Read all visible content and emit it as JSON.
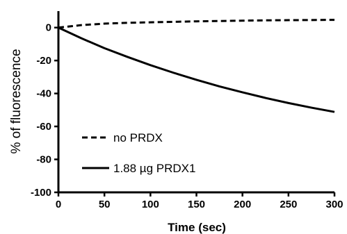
{
  "chart_data": {
    "type": "line",
    "title": "",
    "xlabel": "Time (sec)",
    "ylabel": "% of fluorescence",
    "xlim": [
      0,
      300
    ],
    "ylim": [
      -100,
      10
    ],
    "x_ticks": [
      0,
      50,
      100,
      150,
      200,
      250,
      300
    ],
    "y_ticks": [
      0,
      -20,
      -40,
      -60,
      -80,
      -100
    ],
    "grid": false,
    "legend_position": "bottom-left",
    "series": [
      {
        "name": "no PRDX",
        "line_style": "dashed",
        "color": "#000000",
        "x": [
          0,
          25,
          50,
          75,
          100,
          125,
          150,
          175,
          200,
          225,
          250,
          275,
          300
        ],
        "y": [
          0,
          1.5,
          2.4,
          2.9,
          3.2,
          3.5,
          3.8,
          4.0,
          4.2,
          4.4,
          4.5,
          4.6,
          4.7
        ]
      },
      {
        "name": "1.88 µg PRDX1",
        "line_style": "solid",
        "color": "#000000",
        "x": [
          0,
          25,
          50,
          75,
          100,
          125,
          150,
          175,
          200,
          225,
          250,
          275,
          300
        ],
        "y": [
          0,
          -6.5,
          -12.5,
          -17.8,
          -22.8,
          -27.4,
          -31.7,
          -35.7,
          -39.3,
          -42.7,
          -45.8,
          -48.6,
          -51.2
        ]
      }
    ]
  }
}
